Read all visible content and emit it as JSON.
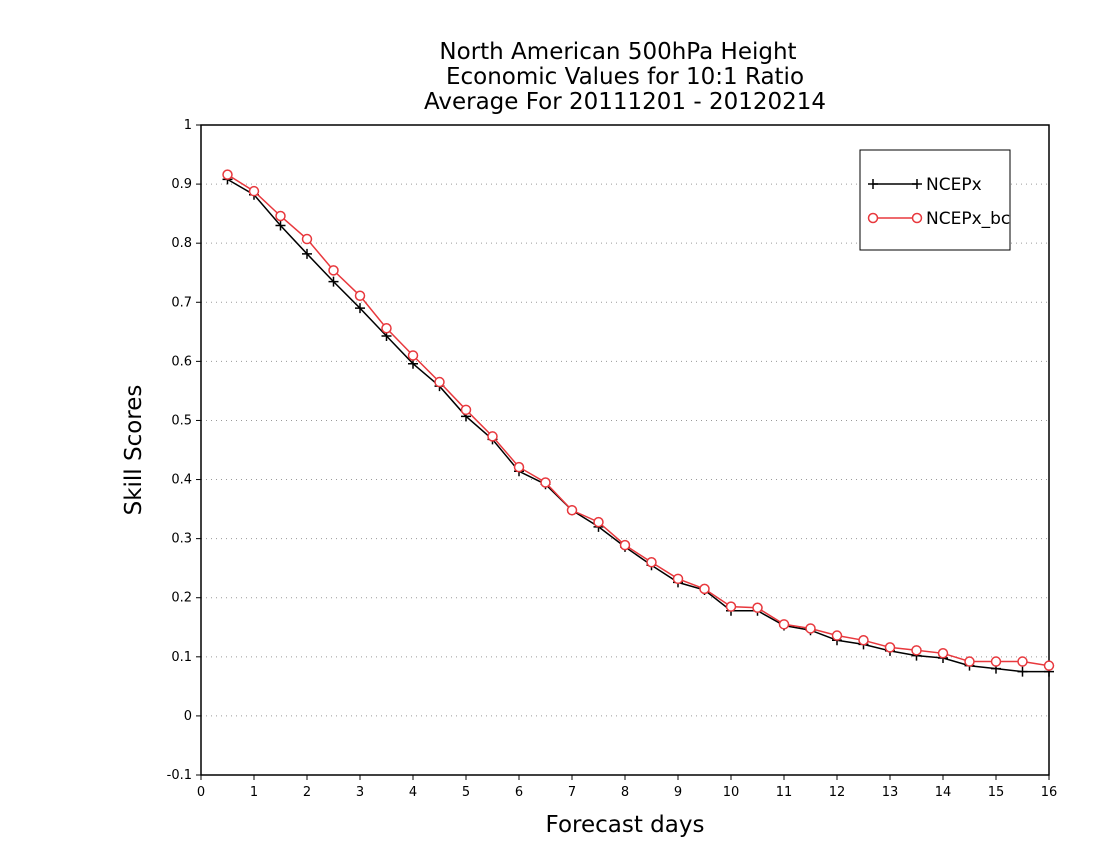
{
  "chart_data": {
    "type": "line",
    "title": [
      "North American 500hPa Height",
      "Economic Values for 10:1 Ratio",
      "Average For 20111201 - 20120214"
    ],
    "xlabel": "Forecast days",
    "ylabel": "Skill Scores",
    "xlim": [
      0,
      16
    ],
    "ylim": [
      -0.1,
      1
    ],
    "xticks": [
      0,
      1,
      2,
      3,
      4,
      5,
      6,
      7,
      8,
      9,
      10,
      11,
      12,
      13,
      14,
      15,
      16
    ],
    "yticks": [
      -0.1,
      0,
      0.1,
      0.2,
      0.3,
      0.4,
      0.5,
      0.6,
      0.7,
      0.8,
      0.9,
      1
    ],
    "grid": "horizontal dotted",
    "legend_position": "top-right",
    "x": [
      0.5,
      1,
      1.5,
      2,
      2.5,
      3,
      3.5,
      4,
      4.5,
      5,
      5.5,
      6,
      6.5,
      7,
      7.5,
      8,
      8.5,
      9,
      9.5,
      10,
      10.5,
      11,
      11.5,
      12,
      12.5,
      13,
      13.5,
      14,
      14.5,
      15,
      15.5,
      16
    ],
    "series": [
      {
        "name": "NCEPx",
        "color": "#000000",
        "marker": "plus",
        "values": [
          0.908,
          0.882,
          0.83,
          0.782,
          0.735,
          0.69,
          0.643,
          0.596,
          0.558,
          0.507,
          0.468,
          0.414,
          0.392,
          0.348,
          0.32,
          0.286,
          0.255,
          0.226,
          0.213,
          0.178,
          0.178,
          0.153,
          0.145,
          0.128,
          0.121,
          0.11,
          0.102,
          0.098,
          0.085,
          0.08,
          0.075,
          0.075
        ]
      },
      {
        "name": "NCEPx_bc",
        "color": "#e8383d",
        "marker": "circle",
        "values": [
          0.916,
          0.888,
          0.846,
          0.807,
          0.754,
          0.711,
          0.656,
          0.61,
          0.565,
          0.518,
          0.473,
          0.421,
          0.395,
          0.348,
          0.328,
          0.289,
          0.26,
          0.232,
          0.215,
          0.185,
          0.183,
          0.155,
          0.148,
          0.136,
          0.128,
          0.116,
          0.111,
          0.106,
          0.092,
          0.092,
          0.092,
          0.085
        ]
      }
    ]
  }
}
